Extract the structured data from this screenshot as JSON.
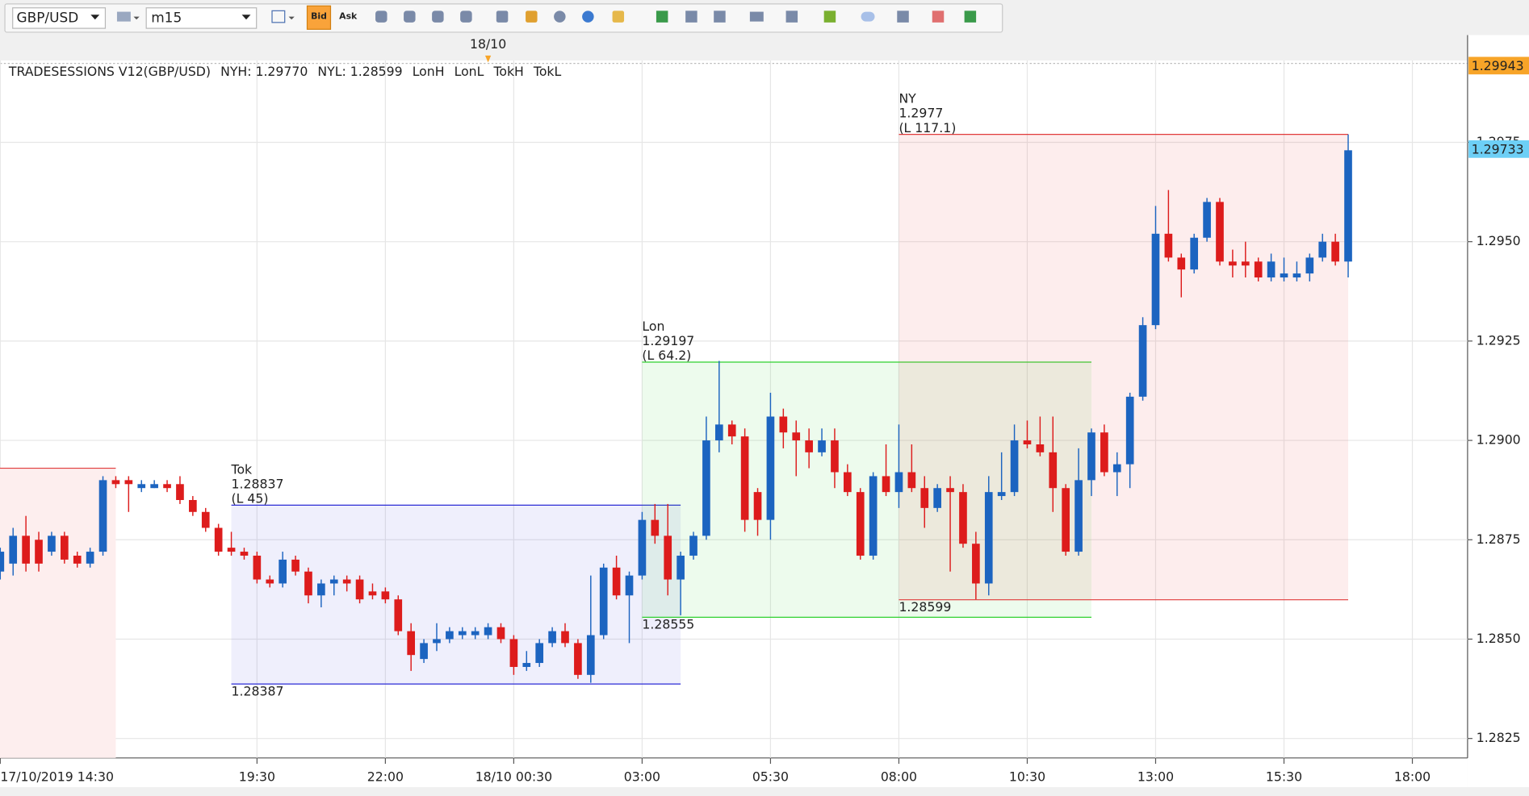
{
  "toolbar": {
    "symbol": "GBP/USD",
    "timeframe": "m15",
    "bid": "Bid",
    "ask": "Ask"
  },
  "chart_data": {
    "type": "candlestick",
    "indicator": {
      "title": "TRADESESSIONS V12(GBP/USD)",
      "title_color": "#e8262a",
      "items": [
        {
          "text": "NYH: 1.29770",
          "color": "#e8262a"
        },
        {
          "text": "NYL: 1.28599",
          "color": "#e8262a"
        },
        {
          "text": "LonH",
          "color": "#2fd12f"
        },
        {
          "text": "LonL",
          "color": "#2fd12f"
        },
        {
          "text": "TokH",
          "color": "#2b2bd6"
        },
        {
          "text": "TokL",
          "color": "#2b2bd6"
        }
      ]
    },
    "open": [
      1.2867,
      1.2869,
      1.2876,
      1.2875,
      1.2872,
      1.2876,
      1.2871,
      1.2869,
      1.2872,
      1.289,
      1.289,
      1.2888,
      1.2888,
      1.2889,
      1.2889,
      1.2885,
      1.2882,
      1.2878,
      1.2873,
      1.2872,
      1.2871,
      1.2865,
      1.2864,
      1.287,
      1.2867,
      1.2861,
      1.2864,
      1.2865,
      1.2865,
      1.2862,
      1.2862,
      1.286,
      1.2852,
      1.2845,
      1.2849,
      1.285,
      1.2851,
      1.2851,
      1.2851,
      1.2853,
      1.285,
      1.2843,
      1.2844,
      1.2849,
      1.2852,
      1.2849,
      1.2841,
      1.2851,
      1.2868,
      1.2861,
      1.2866,
      1.288,
      1.2876,
      1.2865,
      1.2871,
      1.2876,
      1.29,
      1.2904,
      1.2901,
      1.2887,
      1.288,
      1.2906,
      1.2902,
      1.29,
      1.2897,
      1.29,
      1.2892,
      1.2887,
      1.2871,
      1.2891,
      1.2887,
      1.2892,
      1.2888,
      1.2883,
      1.2888,
      1.2887,
      1.2874,
      1.2864,
      1.2886,
      1.2887,
      1.29,
      1.2899,
      1.2897,
      1.2888,
      1.2872,
      1.289,
      1.2902,
      1.2892,
      1.2894,
      1.2911,
      1.2929,
      1.2952,
      1.2946,
      1.2943,
      1.2951,
      1.296,
      1.2945,
      1.2945,
      1.2945,
      1.2941,
      1.2941,
      1.2941,
      1.2942,
      1.2946,
      1.295,
      1.2945
    ],
    "high": [
      1.2873,
      1.2878,
      1.2881,
      1.2877,
      1.2877,
      1.2877,
      1.2872,
      1.2873,
      1.2891,
      1.2891,
      1.2891,
      1.289,
      1.289,
      1.289,
      1.2891,
      1.2886,
      1.2883,
      1.2879,
      1.2877,
      1.2873,
      1.2872,
      1.2866,
      1.2872,
      1.2871,
      1.2868,
      1.2865,
      1.2866,
      1.2866,
      1.2866,
      1.2864,
      1.2863,
      1.2861,
      1.2854,
      1.285,
      1.2854,
      1.2853,
      1.2853,
      1.2853,
      1.2854,
      1.2854,
      1.2851,
      1.2847,
      1.285,
      1.2853,
      1.2854,
      1.285,
      1.2866,
      1.2869,
      1.2871,
      1.2867,
      1.2882,
      1.2884,
      1.2884,
      1.2872,
      1.2877,
      1.2906,
      1.292,
      1.2905,
      1.2903,
      1.2888,
      1.2912,
      1.2908,
      1.2905,
      1.2903,
      1.2903,
      1.2903,
      1.2894,
      1.2888,
      1.2892,
      1.2899,
      1.2904,
      1.2899,
      1.2891,
      1.2889,
      1.2891,
      1.2889,
      1.2877,
      1.2891,
      1.2897,
      1.2904,
      1.2905,
      1.2906,
      1.2906,
      1.2889,
      1.2898,
      1.2903,
      1.2904,
      1.2897,
      1.2912,
      1.2931,
      1.2959,
      1.2963,
      1.2947,
      1.2952,
      1.2961,
      1.2961,
      1.2948,
      1.295,
      1.2946,
      1.2947,
      1.2946,
      1.2945,
      1.2947,
      1.2952,
      1.2952,
      1.2977
    ],
    "low": [
      1.2865,
      1.2866,
      1.2867,
      1.2867,
      1.2871,
      1.2869,
      1.2868,
      1.2868,
      1.2871,
      1.2888,
      1.2882,
      1.2887,
      1.2888,
      1.2887,
      1.2884,
      1.2881,
      1.2877,
      1.2871,
      1.2871,
      1.287,
      1.2864,
      1.2863,
      1.2863,
      1.2866,
      1.2859,
      1.2858,
      1.2861,
      1.2862,
      1.2859,
      1.286,
      1.2859,
      1.2851,
      1.2842,
      1.2844,
      1.2847,
      1.2849,
      1.285,
      1.285,
      1.285,
      1.2849,
      1.2841,
      1.2842,
      1.2843,
      1.2848,
      1.2848,
      1.284,
      1.2839,
      1.285,
      1.286,
      1.2849,
      1.2865,
      1.2874,
      1.2861,
      1.2856,
      1.287,
      1.2875,
      1.2897,
      1.2899,
      1.2877,
      1.2876,
      1.2875,
      1.2898,
      1.2891,
      1.2893,
      1.2896,
      1.2888,
      1.2886,
      1.287,
      1.287,
      1.2886,
      1.2883,
      1.2887,
      1.2878,
      1.2882,
      1.2867,
      1.2873,
      1.286,
      1.2861,
      1.2885,
      1.2886,
      1.2898,
      1.2896,
      1.2882,
      1.2871,
      1.2871,
      1.2886,
      1.2891,
      1.2886,
      1.2888,
      1.291,
      1.2928,
      1.2945,
      1.2936,
      1.2942,
      1.295,
      1.2944,
      1.2941,
      1.2941,
      1.294,
      1.294,
      1.294,
      1.294,
      1.294,
      1.2945,
      1.2944,
      1.2941
    ],
    "close": [
      1.2872,
      1.2876,
      1.2869,
      1.2869,
      1.2876,
      1.287,
      1.2869,
      1.2872,
      1.289,
      1.2889,
      1.2889,
      1.2889,
      1.2889,
      1.2888,
      1.2885,
      1.2882,
      1.2878,
      1.2872,
      1.2872,
      1.2871,
      1.2865,
      1.2864,
      1.287,
      1.2867,
      1.2861,
      1.2864,
      1.2865,
      1.2864,
      1.286,
      1.2861,
      1.286,
      1.2852,
      1.2846,
      1.2849,
      1.285,
      1.2852,
      1.2852,
      1.2852,
      1.2853,
      1.285,
      1.2843,
      1.2844,
      1.2849,
      1.2852,
      1.2849,
      1.2841,
      1.2851,
      1.2868,
      1.2861,
      1.2866,
      1.288,
      1.2876,
      1.2865,
      1.2871,
      1.2876,
      1.29,
      1.2904,
      1.2901,
      1.288,
      1.288,
      1.2906,
      1.2902,
      1.29,
      1.2897,
      1.29,
      1.2892,
      1.2887,
      1.2871,
      1.2891,
      1.2887,
      1.2892,
      1.2888,
      1.2883,
      1.2888,
      1.2887,
      1.2874,
      1.2864,
      1.2887,
      1.2887,
      1.29,
      1.2899,
      1.2897,
      1.2888,
      1.2872,
      1.289,
      1.2902,
      1.2892,
      1.2894,
      1.2911,
      1.2929,
      1.2952,
      1.2946,
      1.2943,
      1.2951,
      1.296,
      1.2945,
      1.2944,
      1.2944,
      1.2941,
      1.2945,
      1.2942,
      1.2942,
      1.2946,
      1.295,
      1.2945,
      1.2973
    ],
    "up_color": "#1c64c0",
    "down_color": "#dd1c1c",
    "xlim": [
      -0.02,
      114.3
    ],
    "xticks": [
      {
        "value": 0,
        "label": "17/10/2019 14:30"
      },
      {
        "value": 20,
        "label": "19:30"
      },
      {
        "value": 30,
        "label": "22:00"
      },
      {
        "value": 40,
        "label": "18/10 00:30"
      },
      {
        "value": 50,
        "label": "03:00"
      },
      {
        "value": 60,
        "label": "05:30"
      },
      {
        "value": 70,
        "label": "08:00"
      },
      {
        "value": 80,
        "label": "10:30"
      },
      {
        "value": 90,
        "label": "13:00"
      },
      {
        "value": 100,
        "label": "15:30"
      },
      {
        "value": 110,
        "label": "18:00"
      }
    ],
    "ylim": [
      1.28201,
      1.29956
    ],
    "yticks": [
      {
        "value": 1.2825,
        "label": "1.2825"
      },
      {
        "value": 1.285,
        "label": "1.2850"
      },
      {
        "value": 1.2875,
        "label": "1.2875"
      },
      {
        "value": 1.29,
        "label": "1.2900"
      },
      {
        "value": 1.2925,
        "label": "1.2925"
      },
      {
        "value": 1.295,
        "label": "1.2950"
      },
      {
        "value": 1.2975,
        "label": "1.2975"
      }
    ],
    "grid": true,
    "day_marker": {
      "value": 38,
      "label": "18/10"
    },
    "prior_session": {
      "end": 9,
      "high": 1.2893,
      "color": "#e03a3a",
      "fill": "#fdeeee"
    },
    "sessions": [
      {
        "name": "Tok",
        "range": "(L 45)",
        "start": 18,
        "end": 53,
        "high": 1.28837,
        "low": 1.28387,
        "color": "#2b2bd6",
        "fill": "rgba(110,110,230,0.11)"
      },
      {
        "name": "Lon",
        "range": "(L 64.2)",
        "start": 50,
        "end": 85,
        "high": 1.29197,
        "low": 1.28555,
        "color": "#2fd12f",
        "fill": "rgba(80,220,80,0.10)"
      },
      {
        "name": "NY",
        "range": "(L 117.1)",
        "start": 70,
        "end": 105,
        "high": 1.2977,
        "low": 1.28599,
        "color": "#e03a3a",
        "fill": "rgba(240,80,80,0.10)"
      }
    ],
    "price_labels": [
      {
        "value": 1.29943,
        "color": "#f7a428"
      },
      {
        "value": 1.29733,
        "color": "#6dcff6"
      }
    ]
  }
}
